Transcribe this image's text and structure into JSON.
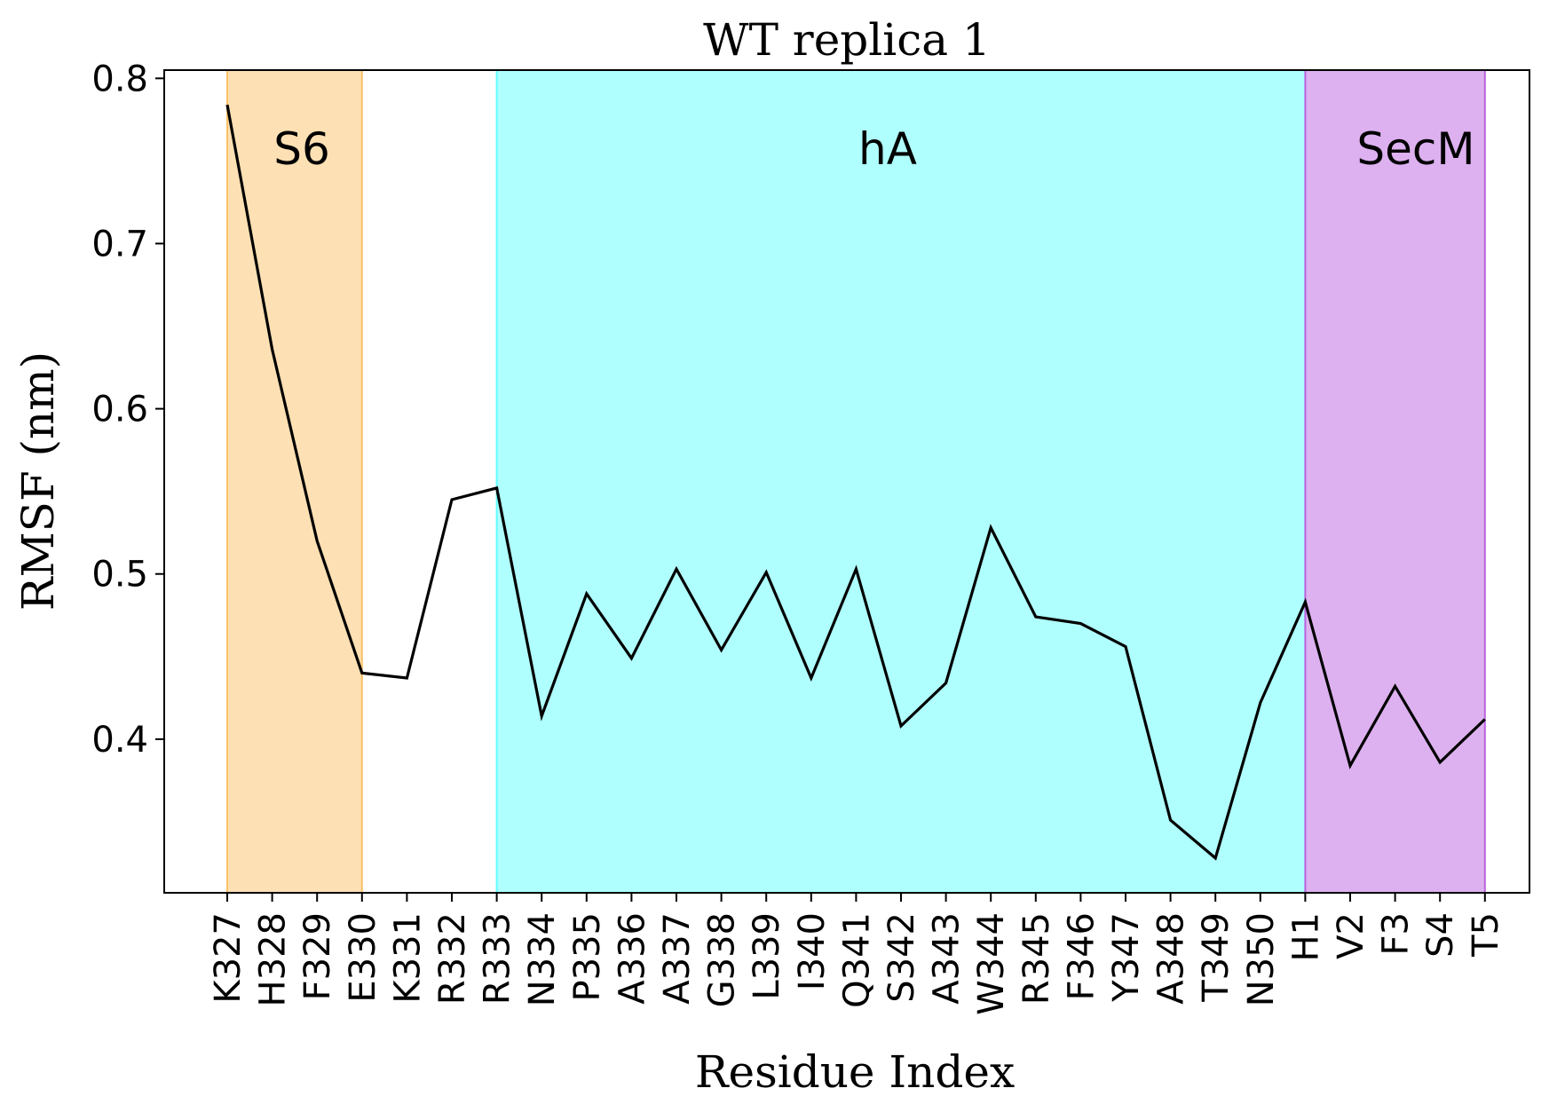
{
  "chart_data": {
    "type": "line",
    "title": "WT replica 1",
    "xlabel": "Residue Index",
    "ylabel": "RMSF (nm)",
    "ylim": [
      0.307,
      0.805
    ],
    "yticks": [
      0.4,
      0.5,
      0.6,
      0.7,
      0.8
    ],
    "ytick_labels": [
      "0.4",
      "0.5",
      "0.6",
      "0.7",
      "0.8"
    ],
    "categories": [
      "K327",
      "H328",
      "F329",
      "E330",
      "K331",
      "R332",
      "R333",
      "N334",
      "P335",
      "A336",
      "A337",
      "G338",
      "L339",
      "I340",
      "Q341",
      "S342",
      "A343",
      "W344",
      "R345",
      "F346",
      "Y347",
      "A348",
      "T349",
      "N350",
      "H1",
      "V2",
      "F3",
      "S4",
      "T5"
    ],
    "series": [
      {
        "color": "#000000",
        "values": [
          0.784,
          0.636,
          0.52,
          0.44,
          0.437,
          0.545,
          0.552,
          0.414,
          0.488,
          0.449,
          0.503,
          0.454,
          0.501,
          0.437,
          0.503,
          0.408,
          0.434,
          0.528,
          0.474,
          0.47,
          0.456,
          0.351,
          0.328,
          0.422,
          0.483,
          0.384,
          0.432,
          0.386,
          0.412
        ]
      }
    ],
    "regions": [
      {
        "label": "S6",
        "start": "K327",
        "end": "E330",
        "color": "#fbc168",
        "opacity": 0.5
      },
      {
        "label": "hA",
        "start": "R333",
        "end": "H1",
        "color": "#62ffff",
        "opacity": 0.5
      },
      {
        "label": "SecM",
        "start": "H1",
        "end": "T5",
        "color": "#bb64e0",
        "opacity": 0.5
      }
    ],
    "grid": false,
    "legend": "none"
  }
}
